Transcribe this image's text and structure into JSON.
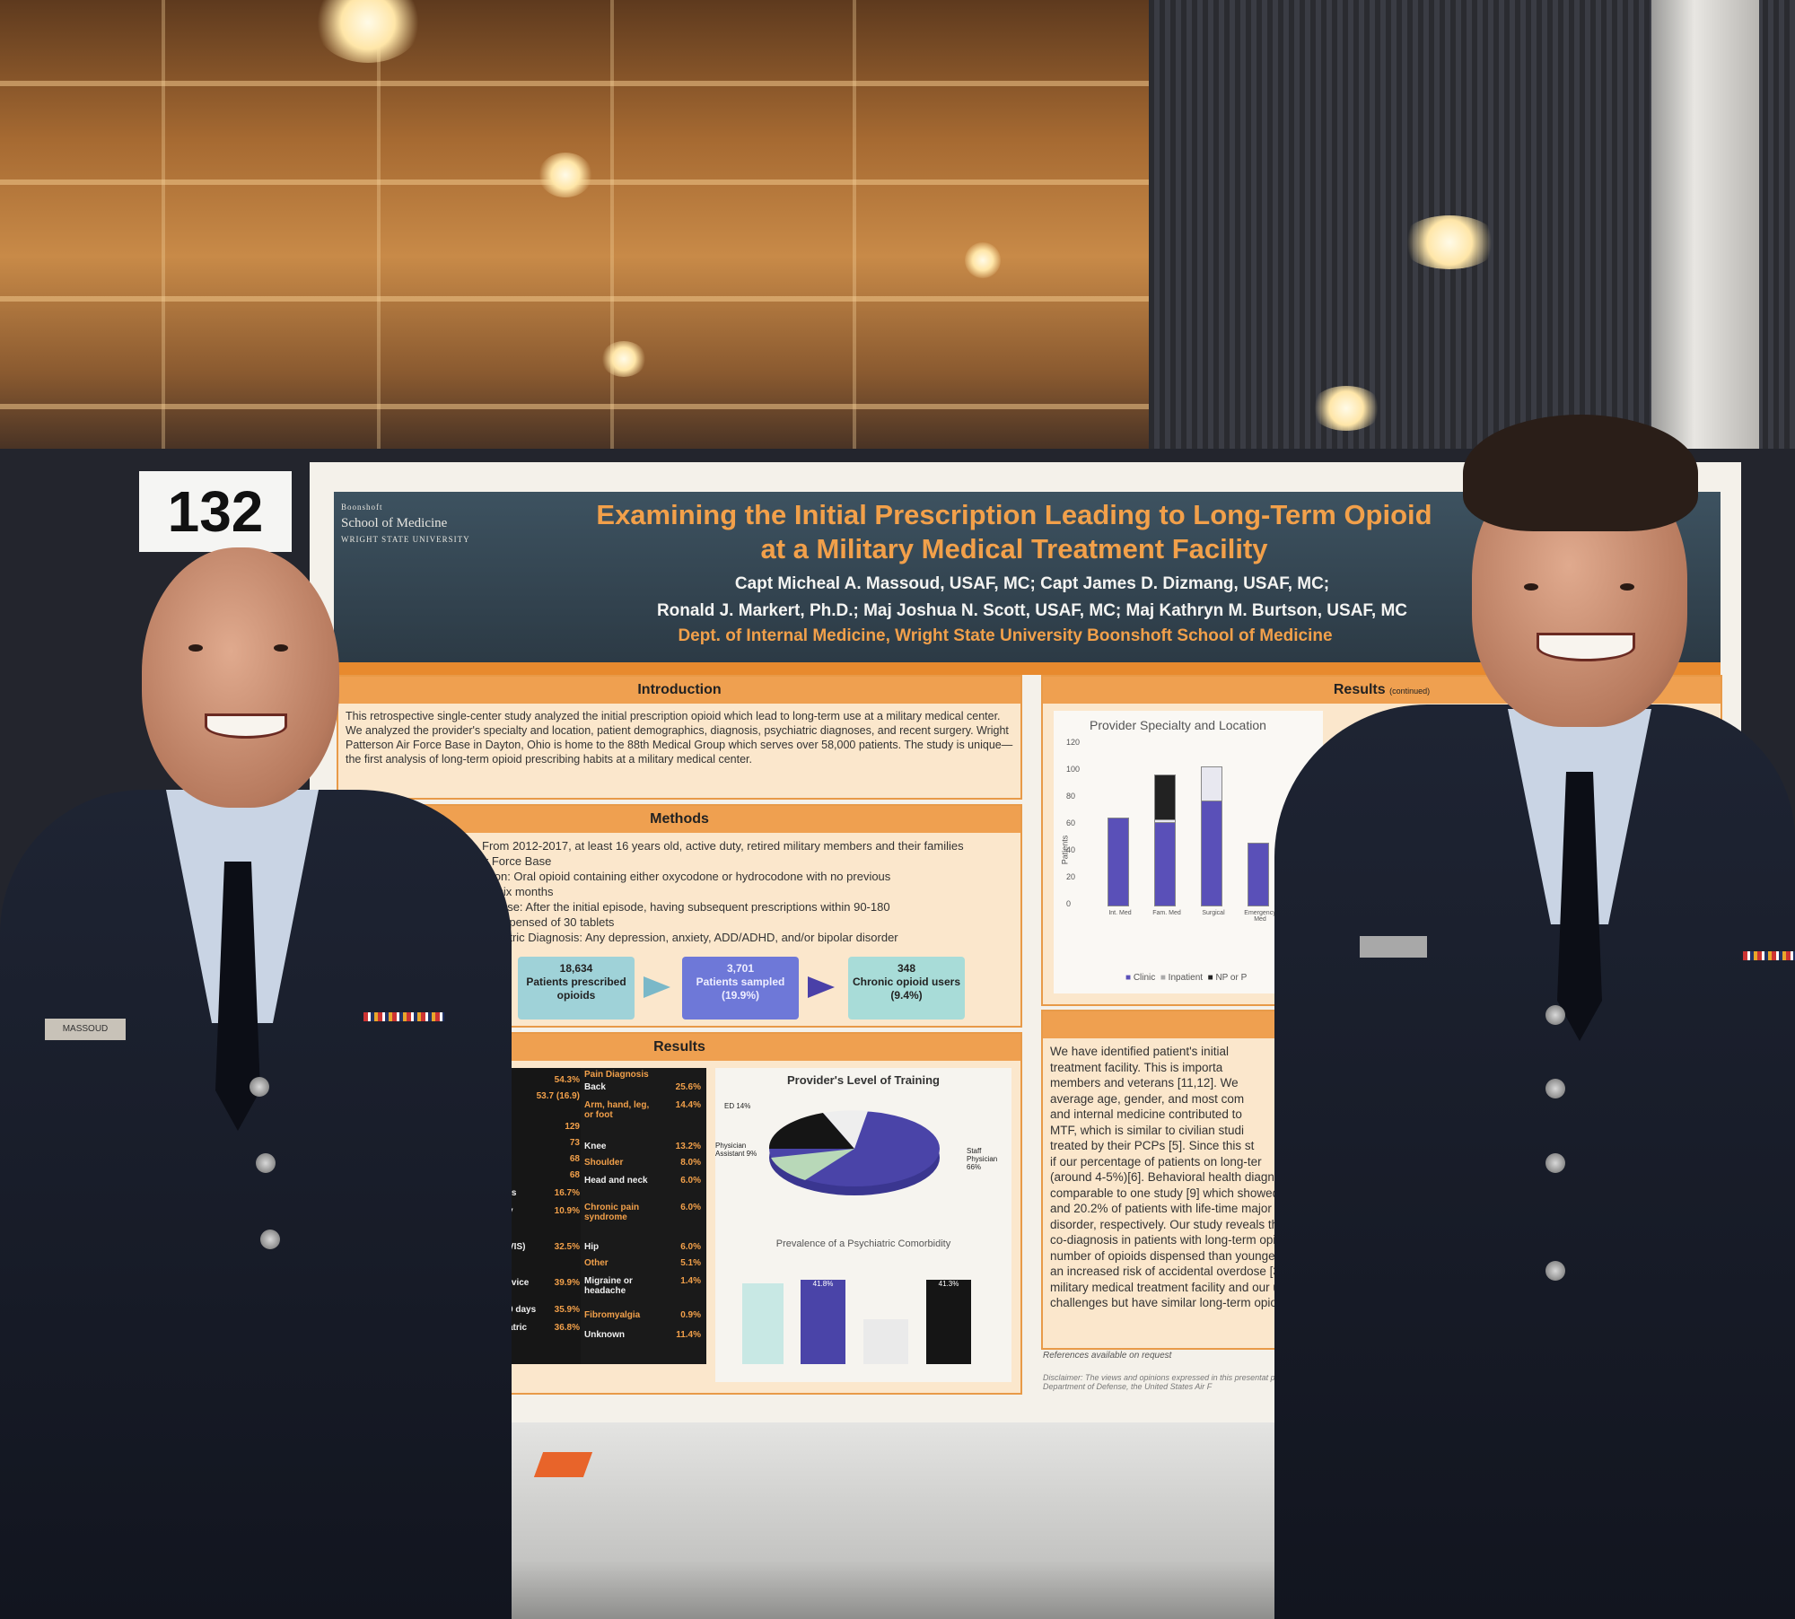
{
  "board_number": "132",
  "poster": {
    "logo": {
      "line1": "Boonshoft",
      "line2": "School of Medicine",
      "line3": "WRIGHT STATE UNIVERSITY"
    },
    "title_line1": "Examining the Initial Prescription Leading to Long-Term Opioid",
    "title_line2": "at a Military Medical Treatment Facility",
    "authors_line1": "Capt Micheal A. Massoud, USAF, MC; Capt James D. Dizmang, USAF, MC;",
    "authors_line2": "Ronald J. Markert, Ph.D.; Maj Joshua N. Scott, USAF, MC; Maj Kathryn M. Burtson, USAF, MC",
    "department": "Dept. of Internal Medicine, Wright State University Boonshoft School of Medicine",
    "introduction": {
      "heading": "Introduction",
      "text": "This retrospective single-center study analyzed the initial prescription opioid which lead to long-term use at a military medical center. We analyzed the provider's specialty and location, patient demographics, diagnosis, psychiatric diagnoses, and recent surgery. Wright Patterson Air Force Base in Dayton, Ohio is home to the 88th Medical Group which serves over 58,000 patients. The study is unique—the first analysis of long-term opioid prescribing habits at a military medical center."
    },
    "methods": {
      "heading": "Methods",
      "lines": [
        "From 2012-2017, at least 16 years old, active duty, retired military members and their families",
        "ir Force Base",
        "ption: Oral opioid containing either oxycodone or hydrocodone with no previous",
        "us six months",
        "oid use: After the initial episode, having subsequent prescriptions within 90-180",
        "ts dispensed of 30 tablets",
        "ychiatric Diagnosis: Any depression, anxiety, ADD/ADHD, and/or bipolar disorder"
      ],
      "flow": [
        {
          "count": "18,634",
          "label": "Patients prescribed opioids",
          "color": "#9fd2d8"
        },
        {
          "count": "3,701",
          "label": "Patients sampled (19.9%)",
          "color": "#6e78d8"
        },
        {
          "count": "348",
          "label": "Chronic opioid users (9.4%)",
          "color": "#a8dcd8"
        }
      ]
    },
    "results_left": {
      "heading": "Results",
      "left_values": [
        {
          "label": "",
          "value": "54.3%"
        },
        {
          "label": "",
          "value": "53.7 (16.9)"
        },
        {
          "label": "",
          "value": "129"
        },
        {
          "label": "",
          "value": "73"
        },
        {
          "label": "",
          "value": "68"
        },
        {
          "label": "",
          "value": "68"
        },
        {
          "label": "rs",
          "value": "16.7%"
        },
        {
          "label": "y",
          "value": "10.9%"
        },
        {
          "label": "VIS)",
          "value": "32.5%"
        },
        {
          "label": "rvice",
          "value": "39.9%"
        },
        {
          "label": "0 days",
          "value": "35.9%"
        },
        {
          "label": "atric",
          "value": "36.8%"
        }
      ],
      "pain_heading": "Pain Diagnosis",
      "pain": [
        {
          "label": "Back",
          "value": "25.6%"
        },
        {
          "label": "Arm, hand, leg, or foot",
          "value": "14.4%"
        },
        {
          "label": "Knee",
          "value": "13.2%"
        },
        {
          "label": "Shoulder",
          "value": "8.0%"
        },
        {
          "label": "Head and neck",
          "value": "6.0%"
        },
        {
          "label": "Chronic pain syndrome",
          "value": "6.0%"
        },
        {
          "label": "Hip",
          "value": "6.0%"
        },
        {
          "label": "Other",
          "value": "5.1%"
        },
        {
          "label": "Migraine or headache",
          "value": "1.4%"
        },
        {
          "label": "Fibromyalgia",
          "value": "0.9%"
        },
        {
          "label": "Unknown",
          "value": "11.4%"
        }
      ],
      "pie_title": "Provider's Level of Training",
      "pie_labels": {
        "ed": "ED 14%",
        "pa": "Physician Assistant 9%",
        "staff": "Staff Physician 66%"
      },
      "psych_title": "Prevalence of a Psychiatric Comorbidity",
      "psych_values": [
        "41.8%",
        "41.3%"
      ]
    },
    "results_right": {
      "heading": "Results",
      "heading_note": "(continued)",
      "chart_title": "Provider Specialty and Location",
      "y_label": "Patients",
      "y_ticks": [
        "120",
        "100",
        "80",
        "60",
        "40",
        "20",
        "0"
      ],
      "categories": [
        "Int. Med",
        "Fam. Med",
        "Surgical",
        "Emergency Med"
      ],
      "legend": [
        "Clinic",
        "Inpatient",
        "NP or P"
      ]
    },
    "discussion": {
      "lines": [
        "We have identified patient's initial",
        "treatment facility.  This is importa",
        "members and veterans [11,12]. We",
        "average age, gender, and most com",
        "and internal medicine contributed to",
        "MTF, which is similar to civilian studi",
        "treated by their PCPs [5]. Since this st",
        "if our percentage of patients on long-ter",
        "(around 4-5%)[6]. Behavioral health diagn",
        "comparable to one study [9] which showed",
        "and 20.2% of patients with life-time major",
        "disorder, respectively. Our study reveals the c",
        "co-diagnosis in patients with long-term opioid",
        "number of opioids dispensed than younger gr",
        "an increased risk of accidental overdose [3]. W",
        "military medical treatment facility and our uniq",
        "challenges but have similar long-term opioid u"
      ],
      "references": "References available on request",
      "disclaimer": "Disclaimer: The views and opinions expressed in this presentat position of the Department of Defense, the United States Air F"
    }
  },
  "people": {
    "left_nametag": "MASSOUD"
  },
  "chart_data": {
    "type": "bar",
    "title": "Provider Specialty and Location",
    "ylabel": "Patients",
    "categories": [
      "Int. Med",
      "Fam. Med",
      "Surgical",
      "Emergency Med"
    ],
    "ylim": [
      0,
      120
    ],
    "series": [
      {
        "name": "Clinic",
        "values": [
          65,
          62,
          78,
          46
        ]
      },
      {
        "name": "Inpatient",
        "values": [
          0,
          2,
          25,
          0
        ]
      },
      {
        "name": "NP or P",
        "values": [
          0,
          33,
          0,
          0
        ]
      }
    ],
    "colors": [
      "#5a50b8",
      "#e8e8f0",
      "#222222"
    ]
  }
}
